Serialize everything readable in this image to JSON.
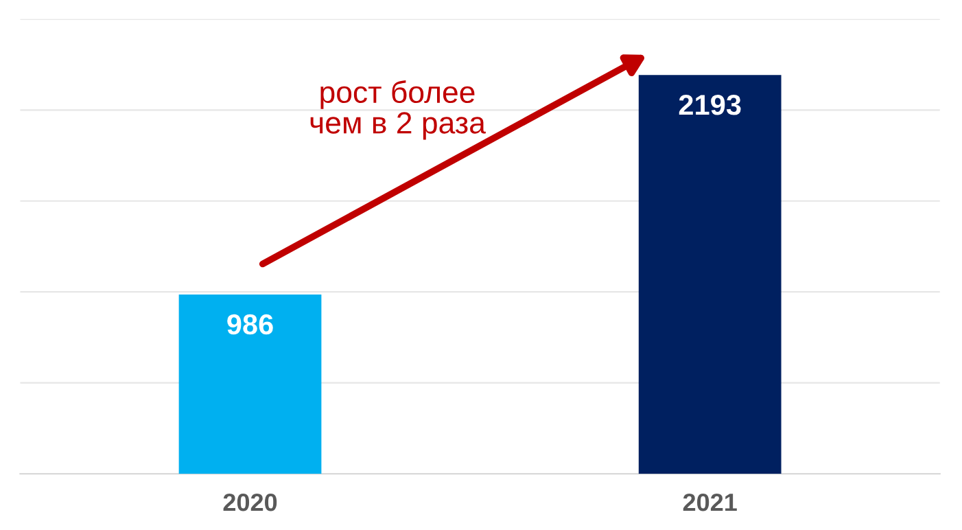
{
  "chart_data": {
    "type": "bar",
    "categories": [
      "2020",
      "2021"
    ],
    "values": [
      986,
      2193
    ],
    "colors": [
      "#00b0f0",
      "#002060"
    ],
    "data_labels": true,
    "ylim": [
      0,
      2500
    ],
    "yticks": [
      {
        "value": 0,
        "label": null
      },
      {
        "value": 500,
        "label": null
      },
      {
        "value": 1000,
        "label": null
      },
      {
        "value": 1500,
        "label": null
      },
      {
        "value": 2000,
        "label": null
      },
      {
        "value": 2500,
        "label": null
      }
    ],
    "grid": "y",
    "tick_labels": "x",
    "annotations": [
      "рост более\nчем в 2 раза"
    ]
  }
}
